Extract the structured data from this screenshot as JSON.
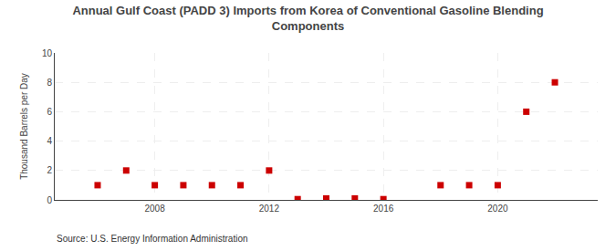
{
  "chart_data": {
    "type": "scatter",
    "title": "Annual Gulf Coast (PADD 3) Imports from Korea of Conventional Gasoline Blending\nComponents",
    "ylabel": "Thousand Barrels per Day",
    "annotations": [
      "Source: U.S. Energy Information Administration"
    ],
    "x": [
      2006,
      2007,
      2008,
      2009,
      2010,
      2011,
      2012,
      2013,
      2014,
      2015,
      2016,
      2018,
      2019,
      2020,
      2021,
      2022
    ],
    "values": [
      1,
      2,
      1,
      1,
      1,
      1,
      2,
      0.05,
      0.1,
      0.1,
      0.05,
      1,
      1,
      1,
      6,
      8
    ],
    "color": "#cc0000",
    "marker": "square",
    "xlim": [
      2004.5,
      2023.5
    ],
    "xticks": [
      2008,
      2012,
      2016,
      2020
    ],
    "ylim": [
      0,
      10
    ],
    "yticks": [
      0,
      2,
      4,
      6,
      8,
      10
    ],
    "grid": true
  }
}
